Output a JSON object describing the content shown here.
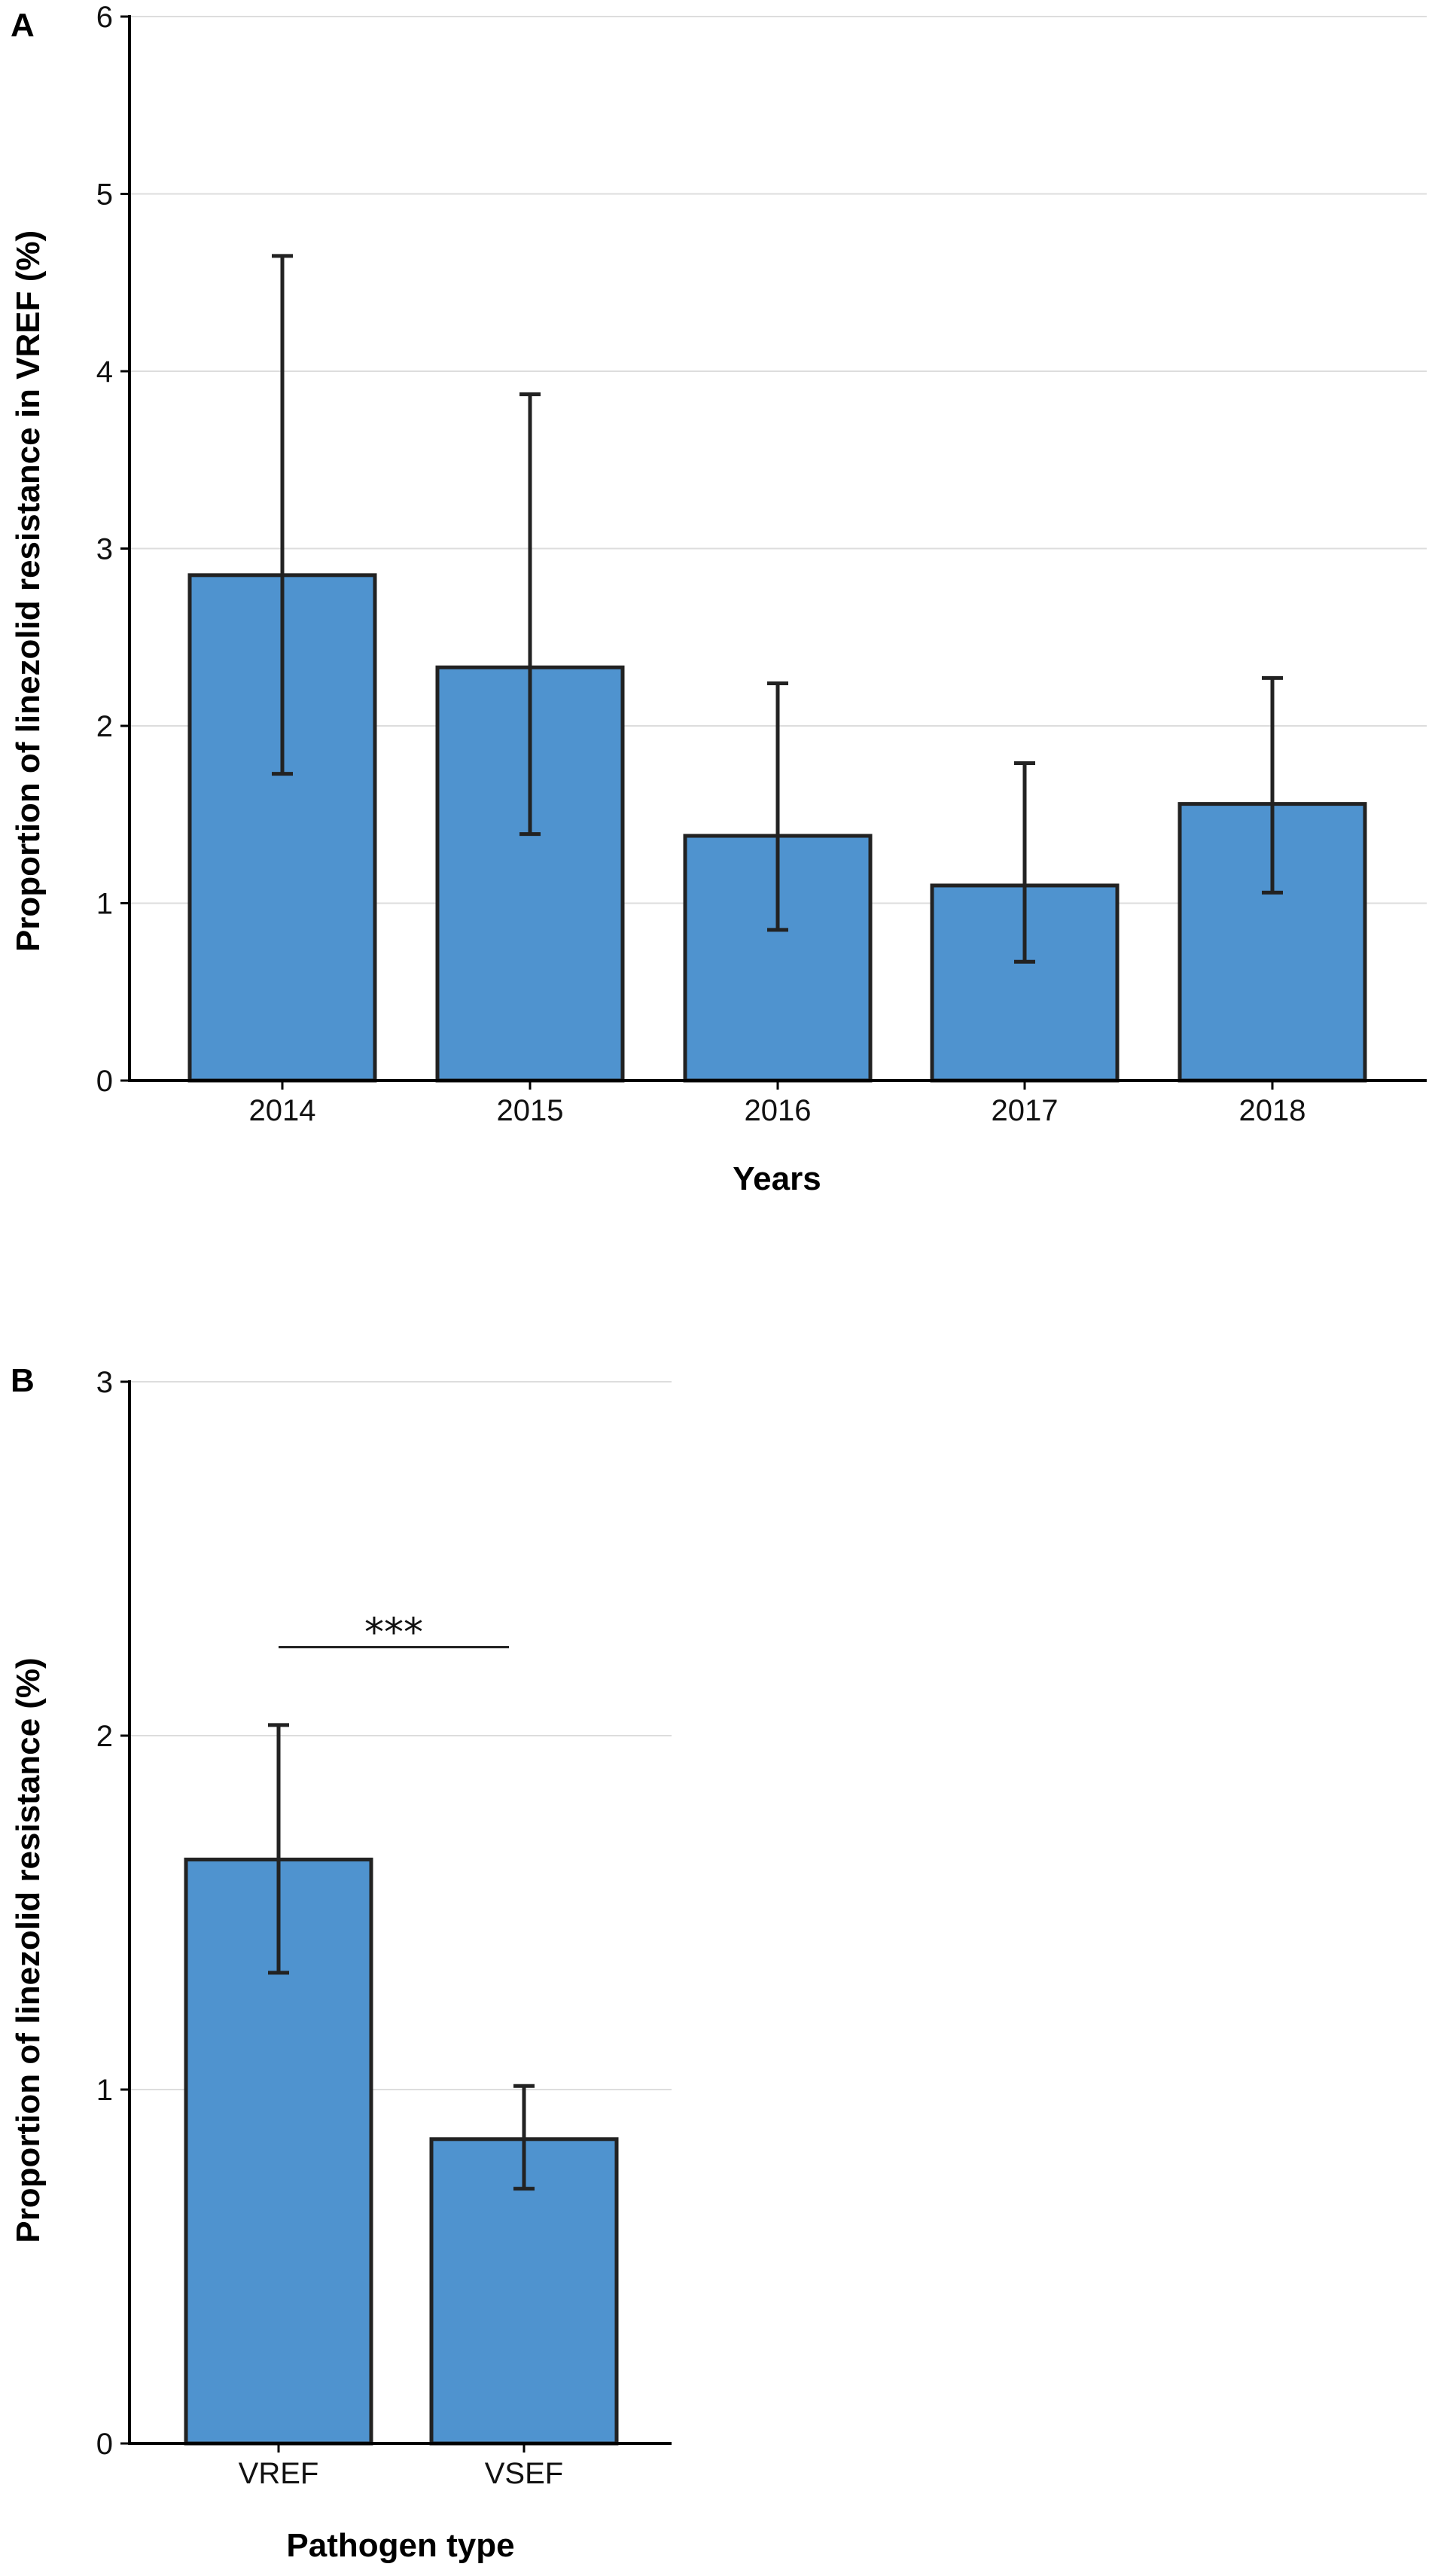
{
  "colors": {
    "bar_fill": "#4f93cf",
    "bar_stroke": "#222222",
    "grid": "#dddddd",
    "axis": "#000000",
    "errorbar": "#222222"
  },
  "chart_data": [
    {
      "panel": "A",
      "type": "bar",
      "title": "",
      "xlabel": "Years",
      "ylabel": "Proportion of linezolid resistance in VREF (%)",
      "ylim": [
        0,
        6
      ],
      "yticks": [
        0,
        1,
        2,
        3,
        4,
        5,
        6
      ],
      "grid": true,
      "categories": [
        "2014",
        "2015",
        "2016",
        "2017",
        "2018"
      ],
      "values": [
        2.85,
        2.33,
        1.38,
        1.1,
        1.56
      ],
      "error_low": [
        1.73,
        1.39,
        0.85,
        0.67,
        1.06
      ],
      "error_high": [
        4.65,
        3.87,
        2.24,
        1.79,
        2.27
      ]
    },
    {
      "panel": "B",
      "type": "bar",
      "title": "",
      "xlabel": "Pathogen type",
      "ylabel": "Proportion of linezolid resistance (%)",
      "ylim": [
        0,
        3
      ],
      "yticks": [
        0,
        1,
        2,
        3
      ],
      "grid": true,
      "categories": [
        "VREF",
        "VSEF"
      ],
      "values": [
        1.65,
        0.86
      ],
      "error_low": [
        1.33,
        0.72
      ],
      "error_high": [
        2.03,
        1.01
      ],
      "annotation": {
        "text": "***",
        "between": [
          "VREF",
          "VSEF"
        ],
        "y": 2.25
      }
    }
  ]
}
